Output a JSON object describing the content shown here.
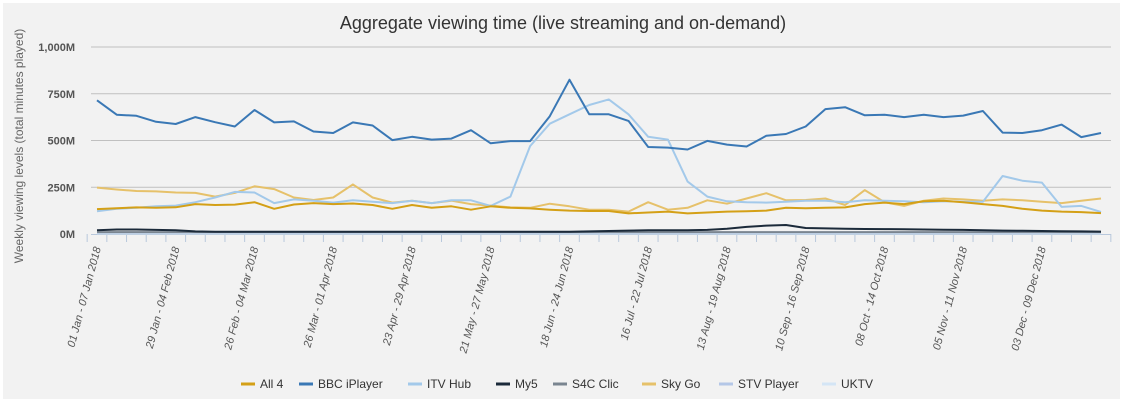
{
  "chart_data": {
    "type": "line",
    "title": "Aggregate viewing time (live streaming and on-demand)",
    "xlabel": "",
    "ylabel": "Weekly viewing levels (total minutes played)",
    "ylim": [
      0,
      1000
    ],
    "y_unit": "M",
    "y_ticks": [
      "0M",
      "250M",
      "500M",
      "750M",
      "1,000M"
    ],
    "y_tick_values": [
      0,
      250,
      500,
      750,
      1000
    ],
    "grid": true,
    "legend_position": "bottom",
    "x_tick_labels": [
      "01 Jan - 07 Jan 2018",
      "29 Jan - 04 Feb 2018",
      "26 Feb - 04 Mar 2018",
      "26 Mar - 01 Apr 2018",
      "23 Apr - 29 Apr 2018",
      "21 May - 27 May 2018",
      "18 Jun - 24 Jun 2018",
      "16 Jul - 22 Jul 2018",
      "13 Aug - 19 Aug 2018",
      "10 Sep - 16 Sep 2018",
      "08 Oct - 14 Oct 2018",
      "05 Nov - 11 Nov 2018",
      "03 Dec - 09 Dec 2018"
    ],
    "x_tick_every": 4,
    "n_points": 52,
    "series": [
      {
        "name": "All 4",
        "color": "#d4a017",
        "values": [
          133,
          138,
          142,
          140,
          143,
          160,
          155,
          157,
          170,
          135,
          158,
          165,
          160,
          163,
          155,
          135,
          155,
          140,
          148,
          130,
          148,
          140,
          137,
          130,
          125,
          123,
          123,
          110,
          115,
          120,
          110,
          115,
          120,
          122,
          125,
          140,
          138,
          140,
          142,
          160,
          168,
          160,
          175,
          178,
          170,
          160,
          150,
          135,
          125,
          120,
          117,
          112
        ]
      },
      {
        "name": "BBC iPlayer",
        "color": "#3a78b5",
        "values": [
          715,
          638,
          632,
          600,
          588,
          625,
          598,
          575,
          663,
          597,
          602,
          548,
          540,
          597,
          580,
          502,
          520,
          505,
          510,
          555,
          485,
          497,
          497,
          630,
          825,
          640,
          640,
          605,
          465,
          462,
          452,
          498,
          478,
          468,
          525,
          535,
          575,
          668,
          678,
          635,
          638,
          625,
          638,
          625,
          633,
          658,
          542,
          540,
          555,
          585,
          518,
          540
        ]
      },
      {
        "name": "ITV Hub",
        "color": "#a3c9ea",
        "values": [
          122,
          135,
          140,
          148,
          152,
          170,
          195,
          225,
          222,
          165,
          185,
          178,
          168,
          180,
          172,
          165,
          178,
          165,
          180,
          180,
          150,
          200,
          470,
          590,
          640,
          690,
          720,
          640,
          520,
          505,
          280,
          200,
          175,
          170,
          168,
          172,
          178,
          178,
          170,
          180,
          178,
          175,
          170,
          175,
          172,
          172,
          310,
          285,
          275,
          145,
          150,
          118
        ]
      },
      {
        "name": "My5",
        "color": "#1b2a3a",
        "values": [
          20,
          24,
          24,
          22,
          20,
          14,
          12,
          12,
          12,
          12,
          12,
          12,
          12,
          12,
          12,
          12,
          12,
          12,
          12,
          12,
          12,
          12,
          12,
          12,
          12,
          14,
          16,
          18,
          20,
          20,
          20,
          22,
          28,
          38,
          45,
          48,
          32,
          30,
          28,
          27,
          26,
          25,
          24,
          23,
          22,
          20,
          18,
          17,
          16,
          15,
          14,
          13
        ]
      },
      {
        "name": "S4C Clic",
        "color": "#7a8590",
        "values": [
          10,
          10,
          10,
          10,
          10,
          10,
          10,
          10,
          10,
          10,
          10,
          10,
          10,
          10,
          10,
          10,
          10,
          10,
          10,
          10,
          10,
          10,
          10,
          10,
          10,
          10,
          10,
          10,
          10,
          10,
          10,
          10,
          10,
          10,
          10,
          10,
          10,
          10,
          10,
          10,
          10,
          10,
          10,
          10,
          10,
          10,
          10,
          10,
          10,
          10,
          10,
          10
        ]
      },
      {
        "name": "Sky Go",
        "color": "#e6c16a",
        "values": [
          248,
          238,
          230,
          228,
          222,
          220,
          200,
          220,
          255,
          240,
          195,
          182,
          195,
          265,
          195,
          168,
          178,
          165,
          178,
          160,
          152,
          142,
          140,
          162,
          148,
          130,
          130,
          120,
          170,
          130,
          140,
          180,
          162,
          190,
          218,
          180,
          182,
          190,
          155,
          235,
          170,
          150,
          178,
          190,
          185,
          178,
          185,
          180,
          172,
          165,
          178,
          190
        ]
      },
      {
        "name": "STV Player",
        "color": "#b4c7e7",
        "values": [
          8,
          8,
          8,
          8,
          8,
          8,
          8,
          8,
          8,
          8,
          8,
          8,
          8,
          8,
          8,
          8,
          8,
          8,
          8,
          8,
          8,
          8,
          8,
          8,
          8,
          8,
          8,
          8,
          8,
          8,
          8,
          8,
          8,
          8,
          8,
          8,
          8,
          8,
          8,
          8,
          8,
          8,
          8,
          8,
          8,
          8,
          8,
          8,
          8,
          8,
          8,
          8
        ]
      },
      {
        "name": "UKTV",
        "color": "#d4e5f5",
        "values": [
          4,
          4,
          4,
          4,
          4,
          4,
          4,
          4,
          4,
          4,
          4,
          4,
          4,
          4,
          4,
          4,
          4,
          4,
          4,
          4,
          4,
          4,
          4,
          4,
          4,
          4,
          4,
          4,
          4,
          4,
          4,
          4,
          4,
          4,
          4,
          4,
          4,
          4,
          4,
          4,
          4,
          4,
          4,
          4,
          4,
          4,
          4,
          4,
          4,
          4,
          4,
          4
        ]
      }
    ]
  }
}
